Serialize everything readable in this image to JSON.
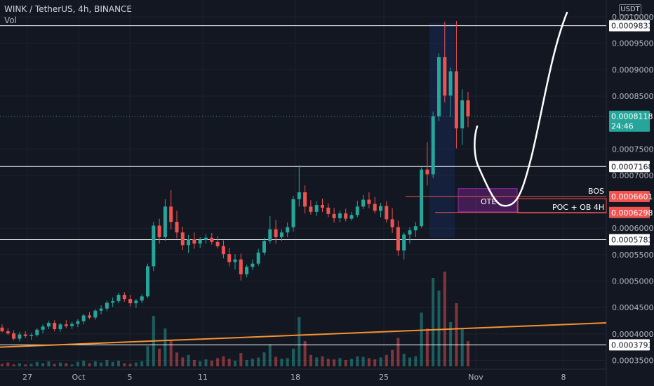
{
  "header": {
    "title": "WINK / TetherUS, 4h, BINANCE",
    "volume_label": "Vol",
    "currency_button": "USDT"
  },
  "price_tag": {
    "price": "0.0008118",
    "countdown": "24:46"
  },
  "labels": {
    "bos": "BOS",
    "ote": "OTE",
    "poc": "POC + OB 4H"
  },
  "colors": {
    "up": "#26a69a",
    "down": "#ef5350",
    "orange": "#f5922f",
    "bg": "#131722"
  },
  "chart_data": {
    "type": "candlestick",
    "symbol": "WINK / TetherUS",
    "interval": "4h",
    "exchange": "BINANCE",
    "y_axis": {
      "range": [
        0.000336,
        0.001
      ],
      "ticks": [
        "0.0010000",
        "0.0009500",
        "0.0009000",
        "0.0008500",
        "0.0007500",
        "0.0007000",
        "0.0006000",
        "0.0005500",
        "0.0005000",
        "0.0004500",
        "0.0004000",
        "0.0003500"
      ]
    },
    "x_axis": {
      "ticks": [
        "27",
        "Oct",
        "5",
        "11",
        "18",
        "25",
        "Nov",
        "8"
      ]
    },
    "horizontal_levels": [
      {
        "value": "0.0009833",
        "color": "#ffffff"
      },
      {
        "value": "0.0007168",
        "color": "#ffffff"
      },
      {
        "value": "0.0006601",
        "color": "#ef5350"
      },
      {
        "value": "0.0006298",
        "color": "#ef5350"
      },
      {
        "value": "0.0005783",
        "color": "#ffffff"
      },
      {
        "value": "0.0003793",
        "color": "#ffffff"
      }
    ],
    "current_price": "0.0008118",
    "ohlc": [
      [
        0.000412,
        0.000418,
        0.000403,
        0.000405
      ],
      [
        0.000405,
        0.000411,
        0.000398,
        0.000401
      ],
      [
        0.000401,
        0.000407,
        0.000388,
        0.000391
      ],
      [
        0.000391,
        0.000404,
        0.000386,
        0.000399
      ],
      [
        0.000399,
        0.000405,
        0.000392,
        0.000396
      ],
      [
        0.000396,
        0.000402,
        0.000389,
        0.000398
      ],
      [
        0.000398,
        0.000411,
        0.000395,
        0.000408
      ],
      [
        0.000408,
        0.000418,
        0.000401,
        0.000414
      ],
      [
        0.000414,
        0.000425,
        0.000409,
        0.000421
      ],
      [
        0.000421,
        0.000426,
        0.000405,
        0.000409
      ],
      [
        0.000409,
        0.000421,
        0.000404,
        0.000418
      ],
      [
        0.000418,
        0.000426,
        0.000411,
        0.000415
      ],
      [
        0.000415,
        0.000423,
        0.000409,
        0.000419
      ],
      [
        0.000419,
        0.000428,
        0.000413,
        0.000424
      ],
      [
        0.000424,
        0.000438,
        0.000418,
        0.000435
      ],
      [
        0.000435,
        0.000441,
        0.000428,
        0.000431
      ],
      [
        0.000431,
        0.000447,
        0.000427,
        0.000444
      ],
      [
        0.000444,
        0.000454,
        0.000437,
        0.000448
      ],
      [
        0.000448,
        0.000463,
        0.000443,
        0.000459
      ],
      [
        0.000459,
        0.000469,
        0.000451,
        0.000462
      ],
      [
        0.000462,
        0.000478,
        0.000458,
        0.000474
      ],
      [
        0.000474,
        0.000479,
        0.000461,
        0.000466
      ],
      [
        0.000466,
        0.000474,
        0.000452,
        0.000458
      ],
      [
        0.000458,
        0.000466,
        0.000449,
        0.000463
      ],
      [
        0.000463,
        0.000475,
        0.000458,
        0.000471
      ],
      [
        0.000471,
        0.000533,
        0.000468,
        0.000528
      ],
      [
        0.000528,
        0.000612,
        0.000519,
        0.000605
      ],
      [
        0.000605,
        0.000618,
        0.000571,
        0.000583
      ],
      [
        0.000583,
        0.000655,
        0.000576,
        0.000641
      ],
      [
        0.000641,
        0.000672,
        0.000598,
        0.000612
      ],
      [
        0.000612,
        0.000633,
        0.000581,
        0.000592
      ],
      [
        0.000592,
        0.000603,
        0.000559,
        0.000568
      ],
      [
        0.000568,
        0.000587,
        0.000553,
        0.000579
      ],
      [
        0.000579,
        0.000592,
        0.000561,
        0.000571
      ],
      [
        0.000571,
        0.000583,
        0.000563,
        0.000578
      ],
      [
        0.000578,
        0.000589,
        0.000571,
        0.000582
      ],
      [
        0.000582,
        0.000591,
        0.000569,
        0.000574
      ],
      [
        0.000574,
        0.000585,
        0.000562,
        0.000566
      ],
      [
        0.000566,
        0.000577,
        0.000543,
        0.000551
      ],
      [
        0.000551,
        0.000563,
        0.000528,
        0.000536
      ],
      [
        0.000536,
        0.000551,
        0.000522,
        0.000541
      ],
      [
        0.000541,
        0.000552,
        0.000501,
        0.000513
      ],
      [
        0.000513,
        0.000531,
        0.000507,
        0.000527
      ],
      [
        0.000527,
        0.000541,
        0.000521,
        0.000533
      ],
      [
        0.000533,
        0.000561,
        0.000529,
        0.000554
      ],
      [
        0.000554,
        0.000582,
        0.000549,
        0.000576
      ],
      [
        0.000576,
        0.000623,
        0.000571,
        0.000598
      ],
      [
        0.000598,
        0.000616,
        0.000571,
        0.000583
      ],
      [
        0.000583,
        0.000598,
        0.000576,
        0.000592
      ],
      [
        0.000592,
        0.000611,
        0.000583,
        0.000602
      ],
      [
        0.000602,
        0.000661,
        0.000594,
        0.000655
      ],
      [
        0.000655,
        0.000719,
        0.000641,
        0.000668
      ],
      [
        0.000668,
        0.000681,
        0.000628,
        0.000641
      ],
      [
        0.000641,
        0.000653,
        0.000626,
        0.000631
      ],
      [
        0.000631,
        0.000651,
        0.000623,
        0.000644
      ],
      [
        0.000644,
        0.000656,
        0.000631,
        0.000639
      ],
      [
        0.000639,
        0.000647,
        0.000621,
        0.000627
      ],
      [
        0.000627,
        0.000638,
        0.000611,
        0.000619
      ],
      [
        0.000619,
        0.000633,
        0.000611,
        0.000628
      ],
      [
        0.000628,
        0.000637,
        0.000613,
        0.000618
      ],
      [
        0.000618,
        0.000631,
        0.000614,
        0.000625
      ],
      [
        0.000625,
        0.000652,
        0.000621,
        0.000641
      ],
      [
        0.000641,
        0.000663,
        0.000636,
        0.000654
      ],
      [
        0.000654,
        0.000668,
        0.000638,
        0.000646
      ],
      [
        0.000646,
        0.000659,
        0.000628,
        0.000633
      ],
      [
        0.000633,
        0.000648,
        0.000621,
        0.000642
      ],
      [
        0.000642,
        0.000651,
        0.000611,
        0.000617
      ],
      [
        0.000617,
        0.000638,
        0.000591,
        0.000602
      ],
      [
        0.000602,
        0.000614,
        0.000548,
        0.000558
      ],
      [
        0.000558,
        0.000592,
        0.000541,
        0.000588
      ],
      [
        0.000588,
        0.000602,
        0.000571,
        0.000596
      ],
      [
        0.000596,
        0.000612,
        0.000583,
        0.000604
      ],
      [
        0.000604,
        0.000715,
        0.000601,
        0.000711
      ],
      [
        0.000711,
        0.000763,
        0.000681,
        0.000702
      ],
      [
        0.000702,
        0.000821,
        0.000695,
        0.000812
      ],
      [
        0.000812,
        0.000931,
        0.000803,
        0.000924
      ],
      [
        0.000924,
        0.000991,
        0.000838,
        0.000851
      ],
      [
        0.000851,
        0.000904,
        0.000811,
        0.000897
      ],
      [
        0.000897,
        0.000992,
        0.000751,
        0.000789
      ],
      [
        0.000789,
        0.000863,
        0.000758,
        0.000842
      ],
      [
        0.000842,
        0.000858,
        0.000791,
        0.000812
      ]
    ],
    "volume": [
      4,
      6,
      3,
      5,
      3,
      4,
      7,
      5,
      8,
      4,
      6,
      5,
      3,
      7,
      9,
      5,
      8,
      6,
      10,
      7,
      9,
      5,
      4,
      6,
      8,
      32,
      80,
      28,
      60,
      40,
      22,
      14,
      18,
      10,
      8,
      11,
      9,
      13,
      16,
      12,
      9,
      21,
      10,
      12,
      14,
      22,
      35,
      15,
      12,
      13,
      28,
      78,
      40,
      18,
      14,
      16,
      12,
      11,
      13,
      10,
      12,
      16,
      15,
      13,
      11,
      14,
      18,
      26,
      45,
      20,
      14,
      16,
      85,
      60,
      140,
      120,
      150,
      70,
      100,
      60,
      40
    ]
  }
}
